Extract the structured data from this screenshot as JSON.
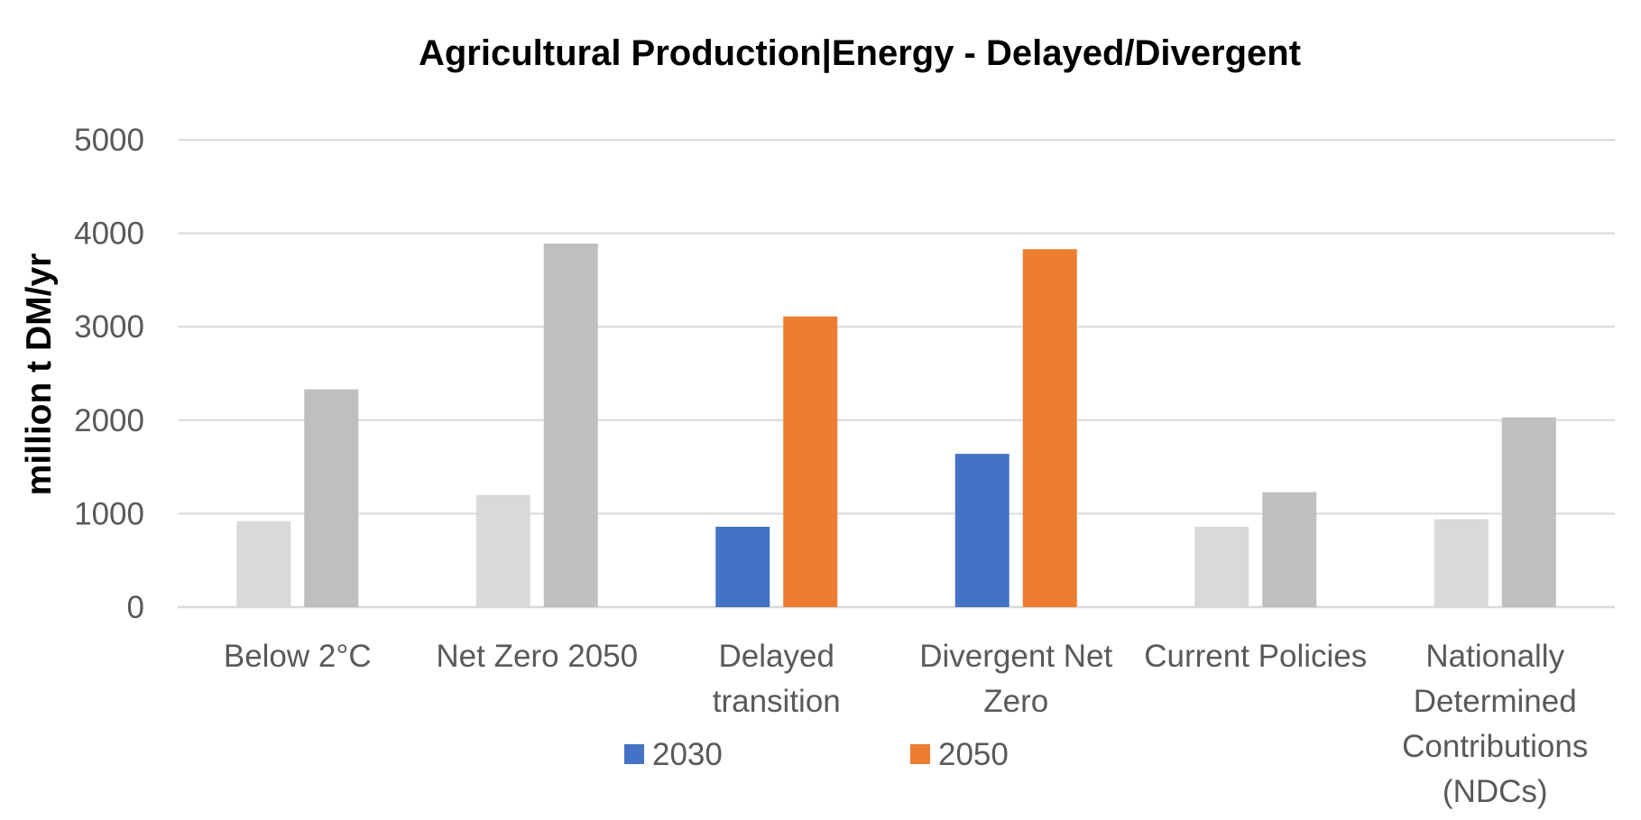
{
  "chart_data": {
    "type": "bar",
    "title": "Agricultural Production|Energy - Delayed/Divergent",
    "ylabel": "million t DM/yr",
    "xlabel": "",
    "ylim": [
      0,
      5000
    ],
    "yticks": [
      0,
      1000,
      2000,
      3000,
      4000,
      5000
    ],
    "grid": true,
    "legend_position": "bottom",
    "categories": [
      [
        "Below 2°C"
      ],
      [
        "Net Zero 2050"
      ],
      [
        "Delayed",
        "transition"
      ],
      [
        "Divergent Net",
        "Zero"
      ],
      [
        "Current Policies"
      ],
      [
        "Nationally",
        "Determined",
        "Contributions",
        "(NDCs)"
      ]
    ],
    "series": [
      {
        "name": "2030",
        "color": "#4472C4",
        "values": [
          920,
          1200,
          860,
          1640,
          860,
          940
        ]
      },
      {
        "name": "2050",
        "color": "#ED7D31",
        "values": [
          2330,
          3890,
          3110,
          3830,
          1230,
          2030
        ]
      }
    ],
    "highlighted_categories": [
      2,
      3
    ],
    "muted_colors": {
      "2030": "#D9D9D9",
      "2050": "#BFBFBF"
    },
    "gridline_color": "#D9D9D9",
    "axis_line_color": "#D9D9D9"
  }
}
